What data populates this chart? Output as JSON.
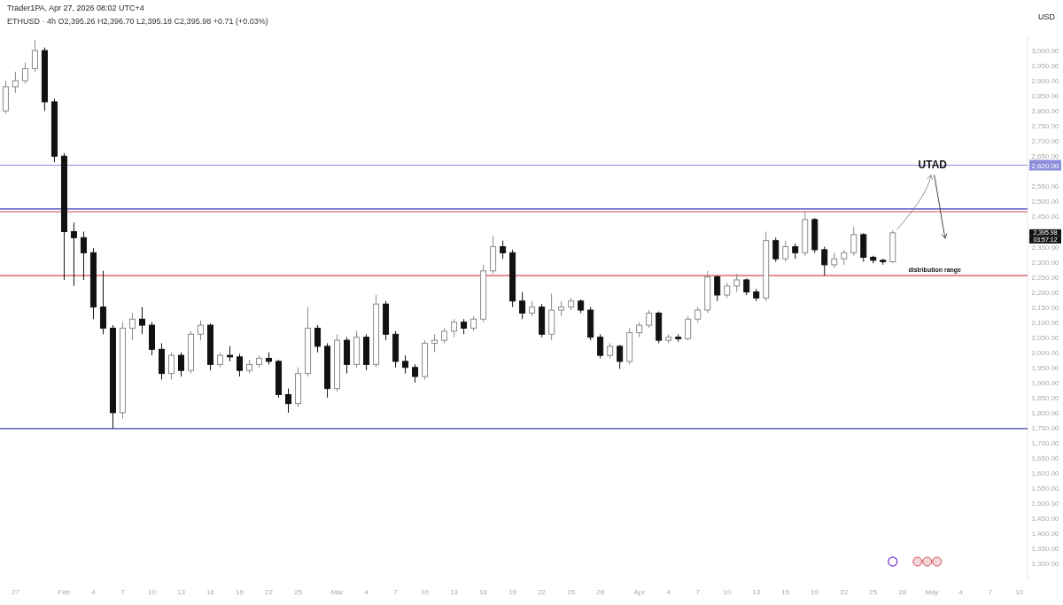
{
  "chart_data": {
    "type": "candlestick",
    "title": "Trader1PA, Apr 27, 2026 08:02 UTC+4",
    "subtitle": "ETHUSD · 4h   O2,395.26  H2,396.70  L2,395.18  C2,395.98  +0.71 (+0.03%)",
    "ylabel": "USD",
    "x": [
      "2026-01-26",
      "2026-01-27",
      "2026-01-28",
      "2026-01-29",
      "2026-01-30",
      "2026-01-31",
      "2026-02-01",
      "2026-02-02",
      "2026-02-03",
      "2026-02-04",
      "2026-02-05",
      "2026-02-06",
      "2026-02-07",
      "2026-02-08",
      "2026-02-09",
      "2026-02-10",
      "2026-02-11",
      "2026-02-12",
      "2026-02-13",
      "2026-02-14",
      "2026-02-15",
      "2026-02-16",
      "2026-02-17",
      "2026-02-18",
      "2026-02-19",
      "2026-02-20",
      "2026-02-21",
      "2026-02-22",
      "2026-02-23",
      "2026-02-24",
      "2026-02-25",
      "2026-02-26",
      "2026-02-27",
      "2026-02-28",
      "2026-03-01",
      "2026-03-02",
      "2026-03-03",
      "2026-03-04",
      "2026-03-05",
      "2026-03-06",
      "2026-03-07",
      "2026-03-08",
      "2026-03-09",
      "2026-03-10",
      "2026-03-11",
      "2026-03-12",
      "2026-03-13",
      "2026-03-14",
      "2026-03-15",
      "2026-03-16",
      "2026-03-17",
      "2026-03-18",
      "2026-03-19",
      "2026-03-20",
      "2026-03-21",
      "2026-03-22",
      "2026-03-23",
      "2026-03-24",
      "2026-03-25",
      "2026-03-26",
      "2026-03-27",
      "2026-03-28",
      "2026-03-29",
      "2026-03-30",
      "2026-03-31",
      "2026-04-01",
      "2026-04-02",
      "2026-04-03",
      "2026-04-04",
      "2026-04-05",
      "2026-04-06",
      "2026-04-07",
      "2026-04-08",
      "2026-04-09",
      "2026-04-10",
      "2026-04-11",
      "2026-04-12",
      "2026-04-13",
      "2026-04-14",
      "2026-04-15",
      "2026-04-16",
      "2026-04-17",
      "2026-04-18",
      "2026-04-19",
      "2026-04-20",
      "2026-04-21",
      "2026-04-22",
      "2026-04-23",
      "2026-04-24",
      "2026-04-25",
      "2026-04-26",
      "2026-04-27"
    ],
    "ohlc": [
      [
        2800,
        2900,
        2790,
        2880
      ],
      [
        2880,
        2930,
        2860,
        2900
      ],
      [
        2900,
        2960,
        2890,
        2940
      ],
      [
        2940,
        3035,
        2930,
        3000
      ],
      [
        3000,
        3010,
        2800,
        2830
      ],
      [
        2830,
        2840,
        2630,
        2650
      ],
      [
        2650,
        2660,
        2240,
        2400
      ],
      [
        2400,
        2430,
        2220,
        2380
      ],
      [
        2380,
        2400,
        2240,
        2330
      ],
      [
        2330,
        2345,
        2110,
        2150
      ],
      [
        2150,
        2270,
        2060,
        2080
      ],
      [
        2080,
        2090,
        1747,
        1800
      ],
      [
        1800,
        2100,
        1780,
        2080
      ],
      [
        2080,
        2130,
        2040,
        2110
      ],
      [
        2110,
        2150,
        2060,
        2090
      ],
      [
        2090,
        2100,
        1990,
        2010
      ],
      [
        2010,
        2030,
        1910,
        1930
      ],
      [
        1930,
        2000,
        1910,
        1990
      ],
      [
        1990,
        2000,
        1920,
        1940
      ],
      [
        1940,
        2070,
        1930,
        2060
      ],
      [
        2060,
        2105,
        2040,
        2090
      ],
      [
        2090,
        2095,
        1940,
        1960
      ],
      [
        1960,
        2000,
        1950,
        1990
      ],
      [
        1990,
        2020,
        1970,
        1985
      ],
      [
        1985,
        1995,
        1920,
        1940
      ],
      [
        1940,
        1975,
        1930,
        1960
      ],
      [
        1960,
        1990,
        1950,
        1980
      ],
      [
        1980,
        2000,
        1960,
        1970
      ],
      [
        1970,
        1975,
        1850,
        1860
      ],
      [
        1860,
        1880,
        1800,
        1830
      ],
      [
        1830,
        1950,
        1820,
        1930
      ],
      [
        1930,
        2150,
        1920,
        2080
      ],
      [
        2080,
        2090,
        2000,
        2020
      ],
      [
        2020,
        2030,
        1850,
        1880
      ],
      [
        1880,
        2060,
        1870,
        2040
      ],
      [
        2040,
        2050,
        1930,
        1960
      ],
      [
        1960,
        2070,
        1950,
        2050
      ],
      [
        2050,
        2060,
        1940,
        1960
      ],
      [
        1960,
        2190,
        1950,
        2160
      ],
      [
        2160,
        2170,
        2040,
        2060
      ],
      [
        2060,
        2070,
        1950,
        1970
      ],
      [
        1970,
        1990,
        1930,
        1950
      ],
      [
        1950,
        1960,
        1900,
        1920
      ],
      [
        1920,
        2040,
        1910,
        2030
      ],
      [
        2030,
        2060,
        2000,
        2040
      ],
      [
        2040,
        2080,
        2030,
        2070
      ],
      [
        2070,
        2110,
        2050,
        2100
      ],
      [
        2100,
        2110,
        2060,
        2080
      ],
      [
        2080,
        2120,
        2070,
        2110
      ],
      [
        2110,
        2290,
        2100,
        2270
      ],
      [
        2270,
        2385,
        2260,
        2350
      ],
      [
        2350,
        2370,
        2310,
        2330
      ],
      [
        2330,
        2340,
        2150,
        2170
      ],
      [
        2170,
        2200,
        2110,
        2130
      ],
      [
        2130,
        2170,
        2120,
        2150
      ],
      [
        2150,
        2160,
        2050,
        2060
      ],
      [
        2060,
        2195,
        2040,
        2140
      ],
      [
        2140,
        2170,
        2120,
        2150
      ],
      [
        2150,
        2180,
        2140,
        2170
      ],
      [
        2170,
        2175,
        2130,
        2140
      ],
      [
        2140,
        2150,
        2040,
        2050
      ],
      [
        2050,
        2060,
        1980,
        1990
      ],
      [
        1990,
        2030,
        1980,
        2020
      ],
      [
        2020,
        2025,
        1945,
        1970
      ],
      [
        1970,
        2080,
        1960,
        2065
      ],
      [
        2065,
        2100,
        2050,
        2090
      ],
      [
        2090,
        2140,
        2080,
        2130
      ],
      [
        2130,
        2135,
        2030,
        2040
      ],
      [
        2040,
        2060,
        2030,
        2050
      ],
      [
        2050,
        2060,
        2035,
        2045
      ],
      [
        2045,
        2120,
        2040,
        2110
      ],
      [
        2110,
        2150,
        2100,
        2140
      ],
      [
        2140,
        2270,
        2130,
        2250
      ],
      [
        2250,
        2255,
        2170,
        2190
      ],
      [
        2190,
        2230,
        2180,
        2220
      ],
      [
        2220,
        2260,
        2200,
        2240
      ],
      [
        2240,
        2245,
        2190,
        2200
      ],
      [
        2200,
        2210,
        2170,
        2180
      ],
      [
        2180,
        2400,
        2170,
        2370
      ],
      [
        2370,
        2380,
        2300,
        2310
      ],
      [
        2310,
        2370,
        2300,
        2350
      ],
      [
        2350,
        2360,
        2310,
        2330
      ],
      [
        2330,
        2466,
        2320,
        2440
      ],
      [
        2440,
        2445,
        2330,
        2340
      ],
      [
        2340,
        2350,
        2254,
        2290
      ],
      [
        2290,
        2330,
        2280,
        2310
      ],
      [
        2310,
        2340,
        2290,
        2330
      ],
      [
        2330,
        2415,
        2320,
        2390
      ],
      [
        2390,
        2395,
        2300,
        2315
      ],
      [
        2315,
        2320,
        2295,
        2305
      ],
      [
        2305,
        2310,
        2290,
        2300
      ],
      [
        2300,
        2405,
        2295,
        2395.98
      ]
    ],
    "xlim": [
      "2026-01-25T10:00",
      "2026-05-10T20:00"
    ],
    "xticks": [
      {
        "value": "2026-01-27",
        "label": "27"
      },
      {
        "value": "2026-02-01",
        "label": "Feb"
      },
      {
        "value": "2026-02-04",
        "label": "4"
      },
      {
        "value": "2026-02-07",
        "label": "7"
      },
      {
        "value": "2026-02-10",
        "label": "10"
      },
      {
        "value": "2026-02-13",
        "label": "13"
      },
      {
        "value": "2026-02-16",
        "label": "16"
      },
      {
        "value": "2026-02-19",
        "label": "19"
      },
      {
        "value": "2026-02-22",
        "label": "22"
      },
      {
        "value": "2026-02-25",
        "label": "25"
      },
      {
        "value": "2026-03-01",
        "label": "Mar"
      },
      {
        "value": "2026-03-04",
        "label": "4"
      },
      {
        "value": "2026-03-07",
        "label": "7"
      },
      {
        "value": "2026-03-10",
        "label": "10"
      },
      {
        "value": "2026-03-13",
        "label": "13"
      },
      {
        "value": "2026-03-16",
        "label": "16"
      },
      {
        "value": "2026-03-19",
        "label": "19"
      },
      {
        "value": "2026-03-22",
        "label": "22"
      },
      {
        "value": "2026-03-25",
        "label": "25"
      },
      {
        "value": "2026-03-28",
        "label": "28"
      },
      {
        "value": "2026-04-01",
        "label": "Apr"
      },
      {
        "value": "2026-04-04",
        "label": "4"
      },
      {
        "value": "2026-04-07",
        "label": "7"
      },
      {
        "value": "2026-04-10",
        "label": "10"
      },
      {
        "value": "2026-04-13",
        "label": "13"
      },
      {
        "value": "2026-04-16",
        "label": "16"
      },
      {
        "value": "2026-04-19",
        "label": "19"
      },
      {
        "value": "2026-04-22",
        "label": "22"
      },
      {
        "value": "2026-04-25",
        "label": "25"
      },
      {
        "value": "2026-04-28",
        "label": "28"
      },
      {
        "value": "2026-05-01",
        "label": "May"
      },
      {
        "value": "2026-05-04",
        "label": "4"
      },
      {
        "value": "2026-05-07",
        "label": "7"
      },
      {
        "value": "2026-05-10",
        "label": "10"
      }
    ],
    "ylim": [
      1245,
      3050
    ],
    "yticks": [
      {
        "value": 1300,
        "label": "1,300.00"
      },
      {
        "value": 1350,
        "label": "1,350.00"
      },
      {
        "value": 1400,
        "label": "1,400.00"
      },
      {
        "value": 1450,
        "label": "1,450.00"
      },
      {
        "value": 1500,
        "label": "1,500.00"
      },
      {
        "value": 1550,
        "label": "1,550.00"
      },
      {
        "value": 1600,
        "label": "1,600.00"
      },
      {
        "value": 1650,
        "label": "1,650.00"
      },
      {
        "value": 1700,
        "label": "1,700.00"
      },
      {
        "value": 1750,
        "label": "1,750.00"
      },
      {
        "value": 1800,
        "label": "1,800.00"
      },
      {
        "value": 1850,
        "label": "1,850.00"
      },
      {
        "value": 1900,
        "label": "1,900.00"
      },
      {
        "value": 1950,
        "label": "1,950.00"
      },
      {
        "value": 2000,
        "label": "2,000.00"
      },
      {
        "value": 2050,
        "label": "2,050.00"
      },
      {
        "value": 2100,
        "label": "2,100.00"
      },
      {
        "value": 2150,
        "label": "2,150.00"
      },
      {
        "value": 2200,
        "label": "2,200.00"
      },
      {
        "value": 2250,
        "label": "2,250.00"
      },
      {
        "value": 2300,
        "label": "2,300.00"
      },
      {
        "value": 2350,
        "label": "2,350.00"
      },
      {
        "value": 2450,
        "label": "2,450.00"
      },
      {
        "value": 2500,
        "label": "2,500.00"
      },
      {
        "value": 2550,
        "label": "2,550.00"
      },
      {
        "value": 2650,
        "label": "2,650.00"
      },
      {
        "value": 2700,
        "label": "2,700.00"
      },
      {
        "value": 2750,
        "label": "2,750.00"
      },
      {
        "value": 2800,
        "label": "2,800.00"
      },
      {
        "value": 2850,
        "label": "2,850.00"
      },
      {
        "value": 2900,
        "label": "2,900.00"
      },
      {
        "value": 2950,
        "label": "2,950.00"
      },
      {
        "value": 3000,
        "label": "3,000.00"
      }
    ],
    "ref_lines": [
      {
        "axis": "y",
        "value": 2620,
        "label": "2,620.00",
        "color": "#8c8fd9"
      },
      {
        "axis": "y",
        "value": 2475,
        "color": "#3a3fb5"
      },
      {
        "axis": "y",
        "value": 1747,
        "color": "#3a3fb5"
      },
      {
        "axis": "y",
        "value": 2466,
        "color": "#d9485a"
      },
      {
        "axis": "y",
        "value": 2254,
        "label": "distribution range",
        "color": "#d9485a"
      }
    ],
    "annotations": [
      "UTAD",
      "2,395.98",
      "03:57:12"
    ]
  }
}
